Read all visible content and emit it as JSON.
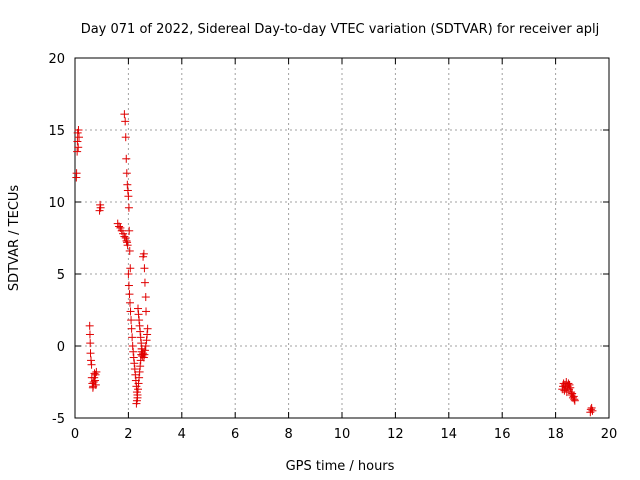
{
  "chart_data": {
    "type": "scatter",
    "title": "Day 071 of 2022, Sidereal Day-to-day VTEC variation (SDTVAR) for receiver aplj",
    "xlabel": "GPS time / hours",
    "ylabel": "SDTVAR / TECUs",
    "xlim": [
      0,
      20
    ],
    "ylim": [
      -5,
      20
    ],
    "xticks": [
      "0",
      "2",
      "4",
      "6",
      "8",
      "10",
      "12",
      "14",
      "16",
      "18",
      "20"
    ],
    "yticks": [
      "-5",
      "0",
      "5",
      "10",
      "15",
      "20"
    ],
    "grid": true,
    "marker": "+",
    "color": "#e00000",
    "series": [
      {
        "name": "SDTVAR",
        "x": [
          0.05,
          0.06,
          0.08,
          0.09,
          0.1,
          0.12,
          0.13,
          0.15,
          0.55,
          0.56,
          0.57,
          0.58,
          0.6,
          0.62,
          0.63,
          0.65,
          0.67,
          0.68,
          0.7,
          0.72,
          0.73,
          0.75,
          0.77,
          0.78,
          0.8,
          0.92,
          0.94,
          0.96,
          1.6,
          1.65,
          1.7,
          1.75,
          1.8,
          1.85,
          1.9,
          1.93,
          1.95,
          1.97,
          1.85,
          1.88,
          1.9,
          1.92,
          1.94,
          1.96,
          1.98,
          2.0,
          2.02,
          2.03,
          2.05,
          2.07,
          2.0,
          2.02,
          2.04,
          2.06,
          2.08,
          2.1,
          2.12,
          2.14,
          2.16,
          2.18,
          2.2,
          2.22,
          2.24,
          2.26,
          2.28,
          2.3,
          2.32,
          2.34,
          2.3,
          2.32,
          2.34,
          2.36,
          2.38,
          2.4,
          2.42,
          2.44,
          2.46,
          2.48,
          2.5,
          2.36,
          2.38,
          2.4,
          2.42,
          2.44,
          2.46,
          2.48,
          2.5,
          2.52,
          2.5,
          2.52,
          2.55,
          2.58,
          2.6,
          2.62,
          2.65,
          2.68,
          2.7,
          2.72,
          2.55,
          2.58,
          2.6,
          2.62,
          2.65,
          2.66,
          18.25,
          18.28,
          18.3,
          18.33,
          18.35,
          18.38,
          18.4,
          18.42,
          18.45,
          18.48,
          18.5,
          18.52,
          18.55,
          18.58,
          18.6,
          18.62,
          18.65,
          18.68,
          18.7,
          18.72,
          19.3,
          19.32,
          19.35,
          19.38
        ],
        "y": [
          11.7,
          12.0,
          13.5,
          14.2,
          14.8,
          13.8,
          15.0,
          14.5,
          1.4,
          0.8,
          0.2,
          -0.5,
          -1.0,
          -1.3,
          -2.2,
          -2.6,
          -2.9,
          -2.8,
          -2.5,
          -2.2,
          -1.9,
          -2.4,
          -2.0,
          -2.7,
          -1.8,
          9.4,
          9.8,
          9.6,
          8.5,
          8.3,
          8.2,
          8.0,
          7.8,
          7.6,
          7.5,
          7.3,
          7.2,
          7.0,
          16.1,
          15.6,
          14.5,
          13.0,
          12.0,
          11.2,
          10.8,
          10.4,
          9.6,
          8.0,
          6.6,
          5.4,
          5.0,
          4.2,
          3.6,
          3.0,
          2.4,
          1.8,
          1.2,
          0.6,
          0.0,
          -0.4,
          -0.8,
          -1.2,
          -1.6,
          -2.0,
          -2.4,
          -2.8,
          -3.2,
          -3.6,
          -4.0,
          -3.8,
          -3.4,
          -3.0,
          -2.6,
          -2.2,
          -1.8,
          -1.4,
          -1.0,
          -0.6,
          -0.2,
          2.6,
          2.2,
          1.8,
          1.4,
          1.0,
          0.6,
          0.2,
          -0.2,
          -0.6,
          -0.4,
          -0.7,
          -0.5,
          -0.8,
          -0.6,
          -0.3,
          0.0,
          0.4,
          0.8,
          1.2,
          6.2,
          6.4,
          5.4,
          4.4,
          3.4,
          2.4,
          -3.0,
          -2.8,
          -2.6,
          -3.1,
          -2.7,
          -2.9,
          -2.5,
          -3.2,
          -2.8,
          -2.6,
          -3.0,
          -2.7,
          -2.9,
          -3.2,
          -3.4,
          -3.3,
          -3.6,
          -3.5,
          -3.7,
          -3.8,
          -4.6,
          -4.4,
          -4.3,
          -4.5
        ]
      }
    ]
  }
}
